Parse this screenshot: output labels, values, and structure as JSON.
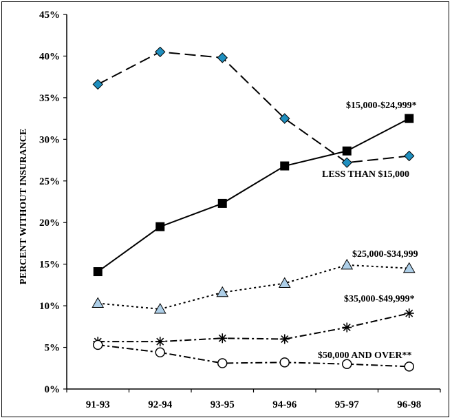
{
  "chart_data": {
    "type": "line",
    "title": "",
    "xlabel": "",
    "ylabel": "PERCENT WITHOUT INSURANCE",
    "categories": [
      "91-93",
      "92-94",
      "93-95",
      "94-96",
      "95-97",
      "96-98"
    ],
    "ylim": [
      0,
      45
    ],
    "yticks": [
      "0%",
      "5%",
      "10%",
      "15%",
      "20%",
      "25%",
      "30%",
      "35%",
      "40%",
      "45%"
    ],
    "grid": false,
    "legend": "none",
    "series": [
      {
        "name": "LESS THAN $15,000",
        "values": [
          36.6,
          40.5,
          39.8,
          32.5,
          27.2,
          28.0
        ],
        "marker": "diamond",
        "dash": "long-dash",
        "color": "#1f8fbf"
      },
      {
        "name": "$15,000-$24,999*",
        "values": [
          14.1,
          19.5,
          22.3,
          26.8,
          28.6,
          32.5
        ],
        "marker": "square",
        "dash": "solid",
        "color": "#000000"
      },
      {
        "name": "$25,000-$34,999",
        "values": [
          10.3,
          9.6,
          11.6,
          12.7,
          14.9,
          14.5
        ],
        "marker": "triangle",
        "dash": "dot",
        "color": "#aecfe8"
      },
      {
        "name": "$35,000-$49,999*",
        "values": [
          5.7,
          5.7,
          6.1,
          6.0,
          7.4,
          9.1
        ],
        "marker": "star",
        "dash": "dash-dot",
        "color": "#000000"
      },
      {
        "name": "$50,000 AND OVER**",
        "values": [
          5.3,
          4.4,
          3.1,
          3.2,
          3.0,
          2.7
        ],
        "marker": "circle",
        "dash": "dash-dot",
        "color": "#ffffff"
      }
    ]
  }
}
